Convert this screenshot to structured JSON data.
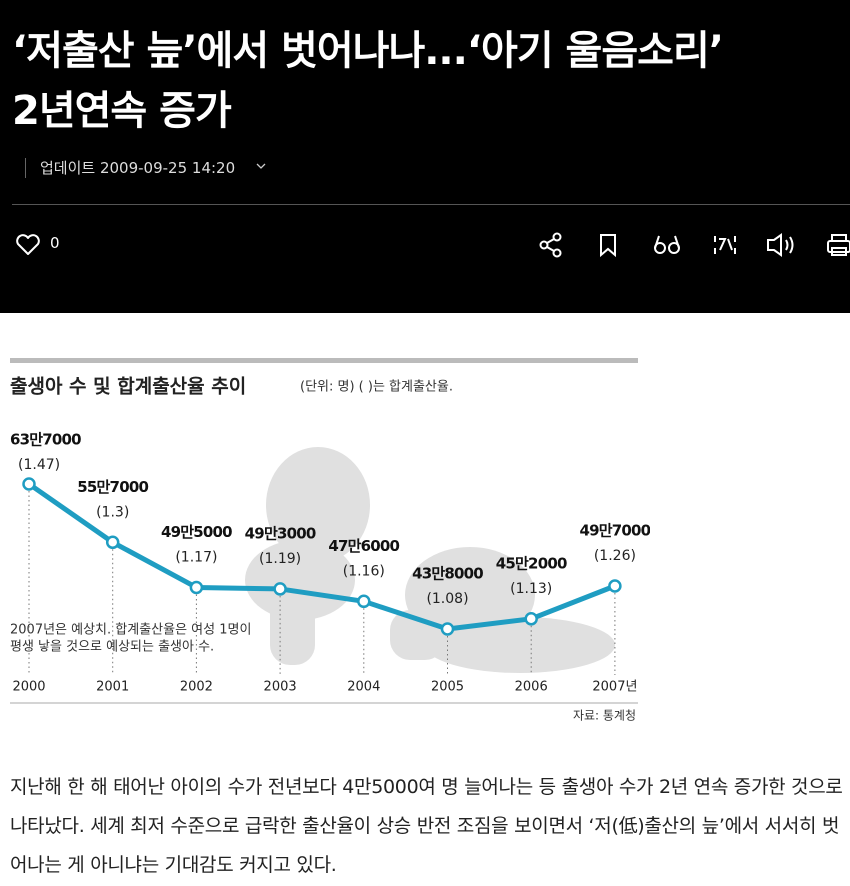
{
  "header": {
    "title_lines": [
      "‘저출산 늪’에서 벗어나나...‘아기 울음소리’",
      "2년연속 증가"
    ],
    "updated": "업데이트 2009-09-25 14:20",
    "likes": "0"
  },
  "chart_data": {
    "type": "line",
    "title": "출생아 수 및 합계출산율 추이",
    "subtitle": "(단위: 명)   ( )는 합계출산율.",
    "categories": [
      "2000",
      "2001",
      "2002",
      "2003",
      "2004",
      "2005",
      "2006",
      "2007년"
    ],
    "series": [
      {
        "color": "#1f9dc2",
        "values": [
          637000,
          557000,
          495000,
          493000,
          476000,
          438000,
          452000,
          497000
        ],
        "value_labels": [
          "63만7000",
          "55만7000",
          "49만5000",
          "49만3000",
          "47만6000",
          "43만8000",
          "45만2000",
          "49만7000"
        ]
      },
      {
        "values": [
          1.47,
          1.3,
          1.17,
          1.19,
          1.16,
          1.08,
          1.13,
          1.26
        ],
        "value_labels": [
          "(1.47)",
          "(1.3)",
          "(1.17)",
          "(1.19)",
          "(1.16)",
          "(1.08)",
          "(1.13)",
          "(1.26)"
        ]
      }
    ],
    "note": [
      "2007년은 예상치. 합계출산율은 여성 1명이",
      "평생 낳을 것으로 예상되는 출생아 수."
    ],
    "source": "자료: 통계청"
  },
  "body": {
    "paragraph": "지난해 한 해 태어난 아이의 수가 전년보다 4만5000여 명 늘어나는 등 출생아 수가 2년 연속 증가한 것으로 나타났다. 세계 최저 수준으로 급락한 출산율이 상승 반전 조짐을 보이면서 ‘저(低)출산의 늪’에서 서서히 벗어나는 게 아니냐는 기대감도 커지고 있다."
  }
}
